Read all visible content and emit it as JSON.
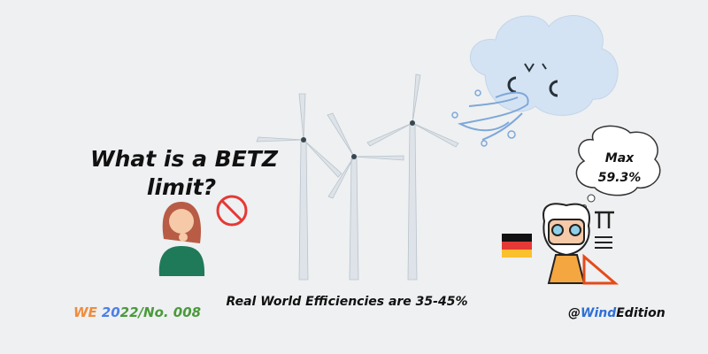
{
  "title": {
    "line1": "What is a BETZ",
    "line2": "limit?"
  },
  "thought_bubble": {
    "line1": "Max",
    "line2": "59.3%"
  },
  "caption": "Real World Efficiencies are 35-45%",
  "issue": {
    "parts": [
      "WE",
      "20",
      "22/No. 008"
    ]
  },
  "handle": {
    "parts": [
      "@",
      "Wind",
      "Edition"
    ]
  }
}
